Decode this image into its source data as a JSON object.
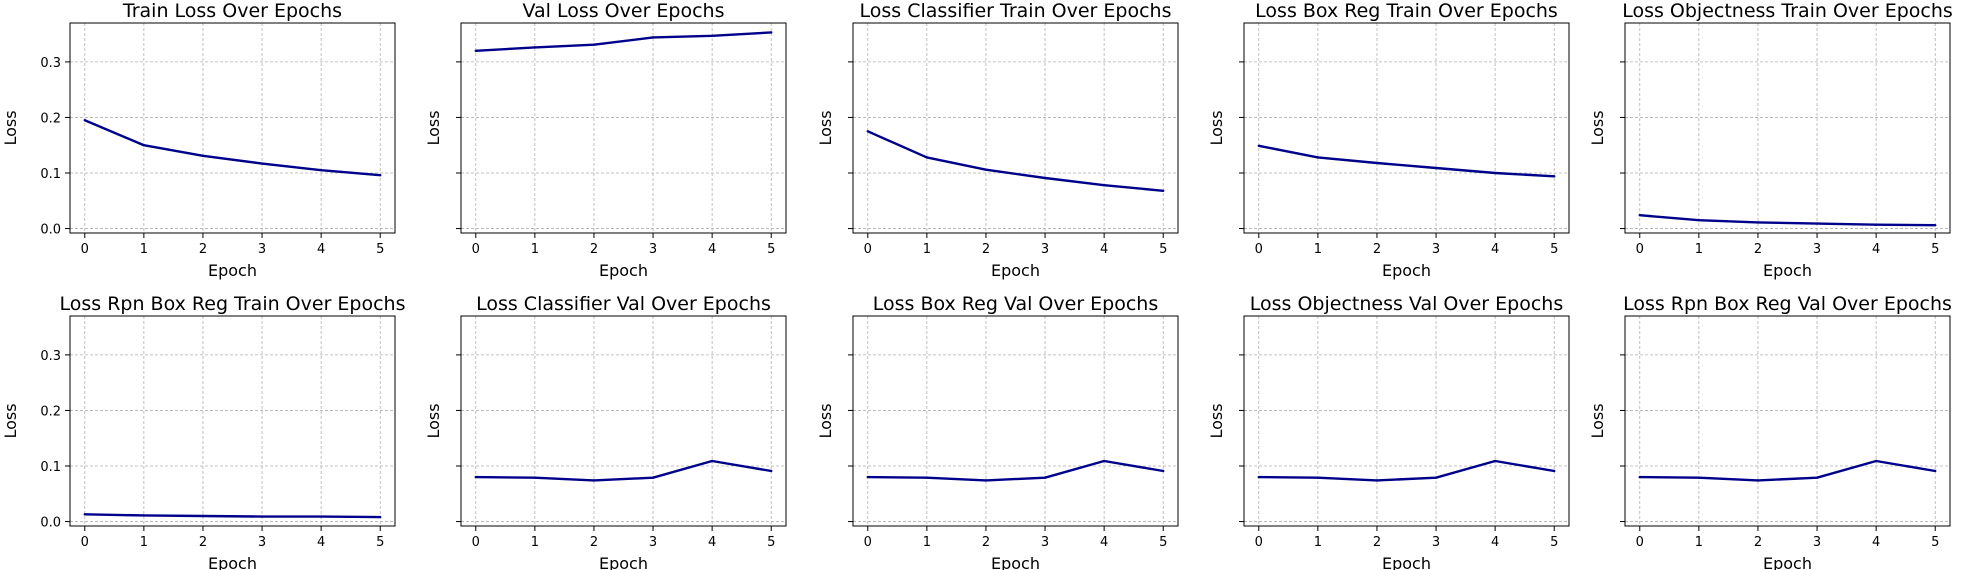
{
  "style": {
    "line_color": "#00008b",
    "grid_color": "#b0b0b0",
    "axes_color": "#000000"
  },
  "chart_data": [
    {
      "type": "line",
      "title": "Train Loss Over Epochs",
      "xlabel": "Epoch",
      "ylabel": "Loss",
      "x": [
        0,
        1,
        2,
        3,
        4,
        5
      ],
      "values": [
        0.195,
        0.15,
        0.131,
        0.117,
        0.105,
        0.096
      ],
      "xlim": [
        -0.25,
        5.25
      ],
      "ylim": [
        -0.008,
        0.37
      ],
      "yticks": [
        "0.0",
        "0.1",
        "0.2",
        "0.3"
      ],
      "grid": true,
      "show_ytick_labels": true
    },
    {
      "type": "line",
      "title": "Val Loss Over Epochs",
      "xlabel": "Epoch",
      "ylabel": "Loss",
      "x": [
        0,
        1,
        2,
        3,
        4,
        5
      ],
      "values": [
        0.32,
        0.326,
        0.331,
        0.344,
        0.347,
        0.353
      ],
      "xlim": [
        -0.25,
        5.25
      ],
      "ylim": [
        -0.008,
        0.37
      ],
      "yticks": [
        "0.0",
        "0.1",
        "0.2",
        "0.3"
      ],
      "grid": true,
      "show_ytick_labels": false
    },
    {
      "type": "line",
      "title": "Loss Classifier Train Over Epochs",
      "xlabel": "Epoch",
      "ylabel": "Loss",
      "x": [
        0,
        1,
        2,
        3,
        4,
        5
      ],
      "values": [
        0.175,
        0.128,
        0.106,
        0.091,
        0.078,
        0.068
      ],
      "xlim": [
        -0.25,
        5.25
      ],
      "ylim": [
        -0.008,
        0.37
      ],
      "yticks": [
        "0.0",
        "0.1",
        "0.2",
        "0.3"
      ],
      "grid": true,
      "show_ytick_labels": false
    },
    {
      "type": "line",
      "title": "Loss Box Reg Train Over Epochs",
      "xlabel": "Epoch",
      "ylabel": "Loss",
      "x": [
        0,
        1,
        2,
        3,
        4,
        5
      ],
      "values": [
        0.149,
        0.128,
        0.118,
        0.109,
        0.1,
        0.094
      ],
      "xlim": [
        -0.25,
        5.25
      ],
      "ylim": [
        -0.008,
        0.37
      ],
      "yticks": [
        "0.0",
        "0.1",
        "0.2",
        "0.3"
      ],
      "grid": true,
      "show_ytick_labels": false
    },
    {
      "type": "line",
      "title": "Loss Objectness Train Over Epochs",
      "xlabel": "Epoch",
      "ylabel": "Loss",
      "x": [
        0,
        1,
        2,
        3,
        4,
        5
      ],
      "values": [
        0.024,
        0.015,
        0.011,
        0.009,
        0.007,
        0.006
      ],
      "xlim": [
        -0.25,
        5.25
      ],
      "ylim": [
        -0.008,
        0.37
      ],
      "yticks": [
        "0.0",
        "0.1",
        "0.2",
        "0.3"
      ],
      "grid": true,
      "show_ytick_labels": false
    },
    {
      "type": "line",
      "title": "Loss Rpn Box Reg Train Over Epochs",
      "xlabel": "Epoch",
      "ylabel": "Loss",
      "x": [
        0,
        1,
        2,
        3,
        4,
        5
      ],
      "values": [
        0.013,
        0.011,
        0.01,
        0.009,
        0.009,
        0.008
      ],
      "xlim": [
        -0.25,
        5.25
      ],
      "ylim": [
        -0.008,
        0.37
      ],
      "yticks": [
        "0.0",
        "0.1",
        "0.2",
        "0.3"
      ],
      "grid": true,
      "show_ytick_labels": true
    },
    {
      "type": "line",
      "title": "Loss Classifier Val Over Epochs",
      "xlabel": "Epoch",
      "ylabel": "Loss",
      "x": [
        0,
        1,
        2,
        3,
        4,
        5
      ],
      "values": [
        0.08,
        0.079,
        0.074,
        0.079,
        0.109,
        0.091
      ],
      "xlim": [
        -0.25,
        5.25
      ],
      "ylim": [
        -0.008,
        0.37
      ],
      "yticks": [
        "0.0",
        "0.1",
        "0.2",
        "0.3"
      ],
      "grid": true,
      "show_ytick_labels": false
    },
    {
      "type": "line",
      "title": "Loss Box Reg Val Over Epochs",
      "xlabel": "Epoch",
      "ylabel": "Loss",
      "x": [
        0,
        1,
        2,
        3,
        4,
        5
      ],
      "values": [
        0.08,
        0.079,
        0.074,
        0.079,
        0.109,
        0.091
      ],
      "xlim": [
        -0.25,
        5.25
      ],
      "ylim": [
        -0.008,
        0.37
      ],
      "yticks": [
        "0.0",
        "0.1",
        "0.2",
        "0.3"
      ],
      "grid": true,
      "show_ytick_labels": false
    },
    {
      "type": "line",
      "title": "Loss Objectness Val Over Epochs",
      "xlabel": "Epoch",
      "ylabel": "Loss",
      "x": [
        0,
        1,
        2,
        3,
        4,
        5
      ],
      "values": [
        0.08,
        0.079,
        0.074,
        0.079,
        0.109,
        0.091
      ],
      "xlim": [
        -0.25,
        5.25
      ],
      "ylim": [
        -0.008,
        0.37
      ],
      "yticks": [
        "0.0",
        "0.1",
        "0.2",
        "0.3"
      ],
      "grid": true,
      "show_ytick_labels": false
    },
    {
      "type": "line",
      "title": "Loss Rpn Box Reg Val Over Epochs",
      "xlabel": "Epoch",
      "ylabel": "Loss",
      "x": [
        0,
        1,
        2,
        3,
        4,
        5
      ],
      "values": [
        0.08,
        0.079,
        0.074,
        0.079,
        0.109,
        0.091
      ],
      "xlim": [
        -0.25,
        5.25
      ],
      "ylim": [
        -0.008,
        0.37
      ],
      "yticks": [
        "0.0",
        "0.1",
        "0.2",
        "0.3"
      ],
      "grid": true,
      "show_ytick_labels": false
    }
  ]
}
